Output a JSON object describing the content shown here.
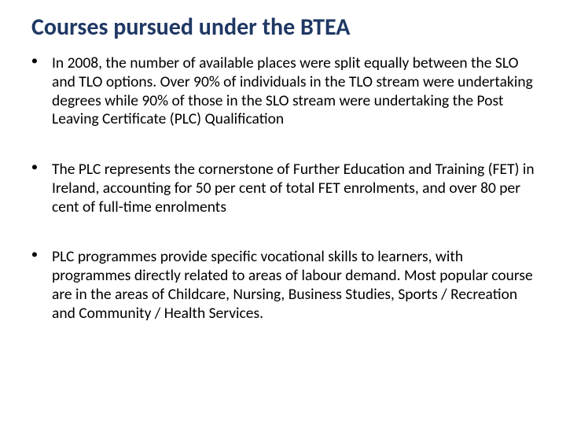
{
  "title_color": "#1f3864",
  "body_color": "#000000",
  "bullet_color": "#000000",
  "background_color": "#ffffff",
  "title_fontsize": 30,
  "body_fontsize": 19.5,
  "title": "Courses pursued under the BTEA",
  "bullets": [
    "In 2008, the number of available places were split equally between the SLO and TLO options.  Over 90% of individuals in the TLO stream were undertaking degrees while 90% of those in the SLO stream were undertaking the Post Leaving Certificate (PLC) Qualification",
    "The PLC represents the cornerstone of Further Education and Training (FET) in Ireland, accounting for 50 per cent of total FET enrolments, and over 80 per cent of full-time enrolments",
    "PLC programmes provide specific vocational skills to learners, with programmes directly related to areas of labour demand.  Most popular course are in the areas of Childcare, Nursing, Business Studies, Sports / Recreation and Community  / Health Services."
  ]
}
